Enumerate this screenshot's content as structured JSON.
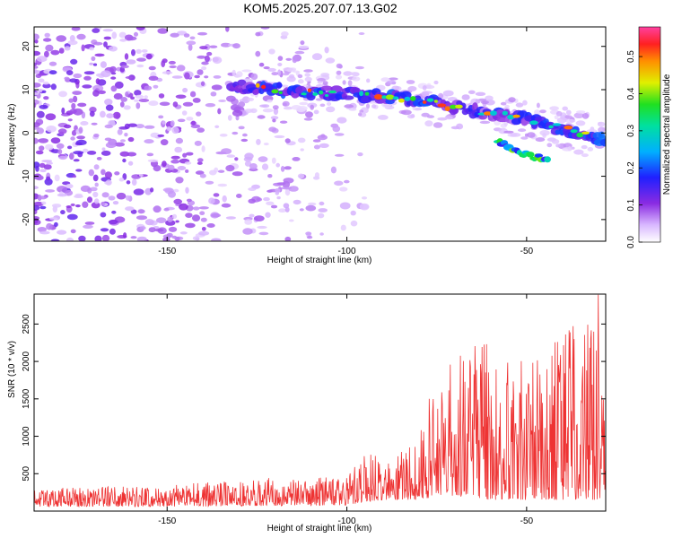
{
  "chart_data": [
    {
      "type": "heatmap",
      "title": "KOM5.2025.207.07.13.G02",
      "xlabel": "Height of straight line (km)",
      "ylabel": "Frequency (Hz)",
      "xlim": [
        -187,
        -28
      ],
      "ylim": [
        -25,
        24.5
      ],
      "xticks": [
        -150,
        -100,
        -50
      ],
      "yticks": [
        -20,
        -10,
        0,
        10,
        20
      ],
      "colorbar": {
        "label": "Normalized spectral amplitude",
        "range": [
          0,
          0.58
        ],
        "ticks": [
          0.0,
          0.1,
          0.2,
          0.3,
          0.4,
          0.5
        ]
      },
      "signal_ridge": {
        "x": [
          -132,
          -120,
          -110,
          -100,
          -90,
          -80,
          -70,
          -60,
          -50,
          -40,
          -30,
          -28
        ],
        "y": [
          11,
          10,
          9.5,
          9,
          8.5,
          7.5,
          6,
          4.5,
          3,
          1,
          -1,
          -2
        ]
      },
      "secondary_branch": {
        "x": [
          -58,
          -53,
          -48,
          -44
        ],
        "y": [
          -2,
          -4,
          -5.5,
          -6.5
        ]
      },
      "peak_amplitude": 0.57
    },
    {
      "type": "line",
      "xlabel": "Height of straight line (km)",
      "ylabel": "SNR (10 * v/v)",
      "xlim": [
        -187,
        -28
      ],
      "ylim": [
        0,
        2900
      ],
      "xticks": [
        -150,
        -100,
        -50
      ],
      "yticks": [
        500,
        1000,
        1500,
        2000,
        2500
      ],
      "series": [
        {
          "color": "#ee3333",
          "envelope": {
            "x": [
              -187,
              -150,
              -120,
              -100,
              -95,
              -90,
              -85,
              -80,
              -75,
              -70,
              -60,
              -50,
              -40,
              -32,
              -30,
              -28
            ],
            "min": [
              60,
              60,
              70,
              80,
              120,
              150,
              150,
              150,
              200,
              200,
              150,
              150,
              150,
              150,
              150,
              150
            ],
            "max": [
              300,
              350,
              450,
              450,
              800,
              700,
              800,
              1000,
              1900,
              2200,
              2250,
              2000,
              2400,
              2650,
              2900,
              2200
            ]
          }
        }
      ]
    }
  ]
}
